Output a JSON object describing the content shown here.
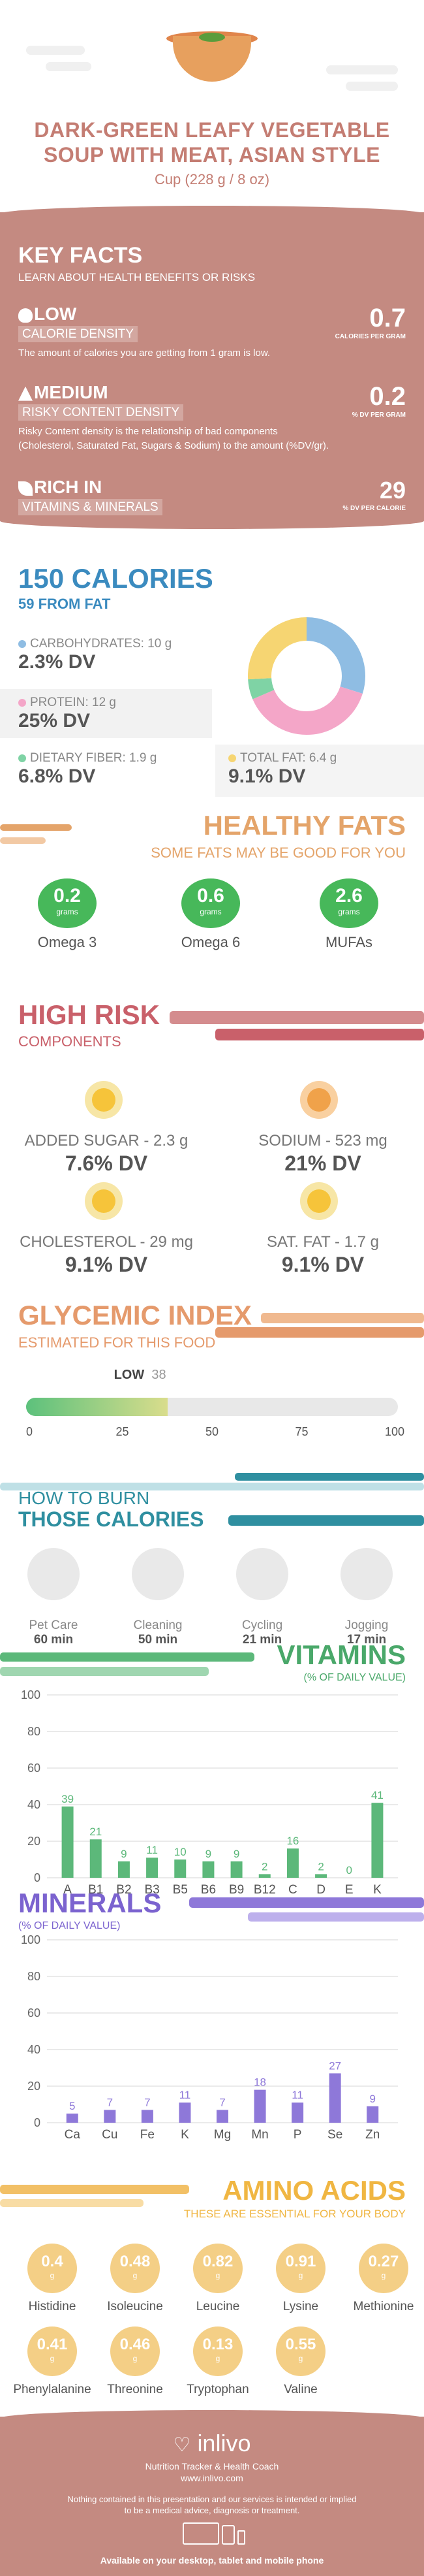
{
  "header": {
    "title_line1": "DARK-GREEN LEAFY VEGETABLE",
    "title_line2": "SOUP WITH MEAT, ASIAN STYLE",
    "serving": "Cup (228 g / 8 oz)"
  },
  "key_facts": {
    "title": "KEY FACTS",
    "subtitle": "LEARN ABOUT HEALTH BENEFITS OR RISKS",
    "low": {
      "label": "LOW",
      "tag": "CALORIE DENSITY",
      "value": "0.7",
      "unit": "CALORIES PER GRAM",
      "desc": "The amount of calories you are getting from 1 gram is low."
    },
    "medium": {
      "label": "MEDIUM",
      "tag": "RISKY CONTENT DENSITY",
      "value": "0.2",
      "unit": "% DV PER GRAM",
      "desc1": "Risky Content density is the relationship of bad components",
      "desc2": "(Cholesterol, Saturated Fat, Sugars & Sodium) to the amount (%DV/gr)."
    },
    "rich": {
      "label": "RICH  IN",
      "tag": "VITAMINS & MINERALS",
      "value": "29",
      "unit": "% DV PER CALORIE"
    }
  },
  "calories": {
    "title": "150 CALORIES",
    "subtitle": "59 FROM FAT",
    "carbs": {
      "label": "CARBOHYDRATES: 10 g",
      "dv": "2.3% DV"
    },
    "protein": {
      "label": "PROTEIN: 12 g",
      "dv": "25% DV"
    },
    "fiber": {
      "label": "DIETARY FIBER: 1.9 g",
      "dv": "6.8% DV"
    },
    "fat": {
      "label": "TOTAL FAT: 6.4 g",
      "dv": "9.1% DV"
    },
    "colors": {
      "carbs": "#8fbde3",
      "protein": "#f4a6c8",
      "fiber": "#7fd3a5",
      "fat": "#f6d572"
    }
  },
  "healthy_fats": {
    "title": "HEALTHY FATS",
    "subtitle": "SOME FATS MAY BE GOOD FOR YOU",
    "items": [
      {
        "value": "0.2",
        "unit": "grams",
        "name": "Omega 3"
      },
      {
        "value": "0.6",
        "unit": "grams",
        "name": "Omega 6"
      },
      {
        "value": "2.6",
        "unit": "grams",
        "name": "MUFAs"
      }
    ]
  },
  "high_risk": {
    "title": "HIGH RISK",
    "subtitle": "COMPONENTS",
    "items": [
      {
        "label": "ADDED SUGAR - 2.3 g",
        "dv": "7.6% DV"
      },
      {
        "label": "SODIUM - 523 mg",
        "dv": "21% DV"
      },
      {
        "label": "CHOLESTEROL - 29 mg",
        "dv": "9.1% DV"
      },
      {
        "label": "SAT. FAT - 1.7 g",
        "dv": "9.1% DV"
      }
    ]
  },
  "glycemic": {
    "title": "GLYCEMIC INDEX",
    "subtitle": "ESTIMATED FOR THIS FOOD",
    "level": "LOW",
    "value": "38",
    "value_num": 38,
    "ticks": [
      "0",
      "25",
      "50",
      "75",
      "100"
    ]
  },
  "burn": {
    "title1": "HOW TO BURN",
    "title2": "THOSE CALORIES",
    "items": [
      {
        "name": "Pet Care",
        "min": "60 min",
        "icon": "pet-care-icon"
      },
      {
        "name": "Cleaning",
        "min": "50 min",
        "icon": "cleaning-icon"
      },
      {
        "name": "Cycling",
        "min": "21 min",
        "icon": "cycling-icon"
      },
      {
        "name": "Jogging",
        "min": "17 min",
        "icon": "jogging-icon"
      }
    ]
  },
  "vitamins": {
    "title": "VITAMINS",
    "subtitle": "(% OF DAILY VALUE)"
  },
  "minerals": {
    "title": "MINERALS",
    "subtitle": "(% OF DAILY VALUE)"
  },
  "chart_data": [
    {
      "type": "bar",
      "categories": [
        "A",
        "B1",
        "B2",
        "B3",
        "B5",
        "B6",
        "B9",
        "B12",
        "C",
        "D",
        "E",
        "K"
      ],
      "values": [
        39,
        21,
        9,
        11,
        10,
        9,
        9,
        2,
        16,
        2,
        0,
        41
      ],
      "ylim": [
        0,
        100
      ],
      "yticks": [
        "0",
        "20",
        "40",
        "60",
        "80",
        "100"
      ],
      "color": "#5cb87a"
    },
    {
      "type": "bar",
      "categories": [
        "Ca",
        "Cu",
        "Fe",
        "K",
        "Mg",
        "Mn",
        "P",
        "Se",
        "Zn"
      ],
      "values": [
        5,
        7,
        7,
        11,
        7,
        18,
        11,
        27,
        9
      ],
      "ylim": [
        0,
        100
      ],
      "yticks": [
        "0",
        "20",
        "40",
        "60",
        "80",
        "100"
      ],
      "color": "#8e78d9"
    }
  ],
  "amino": {
    "title": "AMINO ACIDS",
    "subtitle": "THESE ARE ESSENTIAL FOR YOUR BODY",
    "items": [
      {
        "value": "0.4",
        "unit": "g",
        "name": "Histidine"
      },
      {
        "value": "0.48",
        "unit": "g",
        "name": "Isoleucine"
      },
      {
        "value": "0.82",
        "unit": "g",
        "name": "Leucine"
      },
      {
        "value": "0.91",
        "unit": "g",
        "name": "Lysine"
      },
      {
        "value": "0.27",
        "unit": "g",
        "name": "Methionine"
      },
      {
        "value": "0.41",
        "unit": "g",
        "name": "Phenylalanine"
      },
      {
        "value": "0.46",
        "unit": "g",
        "name": "Threonine"
      },
      {
        "value": "0.13",
        "unit": "g",
        "name": "Tryptophan"
      },
      {
        "value": "0.55",
        "unit": "g",
        "name": "Valine"
      }
    ]
  },
  "footer": {
    "brand": "inlivo",
    "tagline": "Nutrition Tracker & Health Coach",
    "url": "www.inlivo.com",
    "disclaimer1": "Nothing contained in this presentation and our services is intended or implied",
    "disclaimer2": "to be a medical advice, diagnosis or treatment.",
    "available": "Available on your desktop, tablet and mobile phone"
  }
}
